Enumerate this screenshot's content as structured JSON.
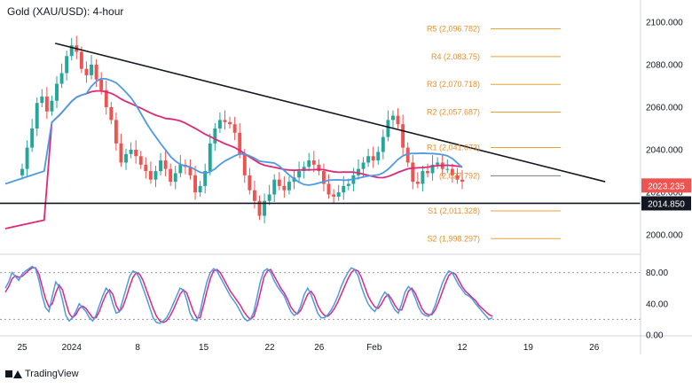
{
  "header": {
    "title": "Gold (XAU/USD): 4-hour"
  },
  "brand": {
    "name": "TradingView"
  },
  "colors": {
    "candle_up": "#26a69a",
    "candle_down": "#ef5350",
    "ma_fast": "#4c9ae6",
    "ma_slow": "#e0287a",
    "trendline": "#131722",
    "pivot": "#f0a030",
    "stoch_k": "#4c9ae6",
    "stoch_d": "#e0287a"
  },
  "chart_data": [
    {
      "type": "candlestick",
      "ylim": [
        1993,
        2107
      ],
      "y_ticks": [
        "2100.000",
        "2080.000",
        "2060.000",
        "2040.000",
        "2020.000",
        "2000.000"
      ],
      "y_tick_values": [
        2100,
        2080,
        2060,
        2040,
        2020,
        2000
      ],
      "x_ticks": [
        {
          "label": "25",
          "t": 0
        },
        {
          "label": "2024",
          "t": 9
        },
        {
          "label": "8",
          "t": 21
        },
        {
          "label": "15",
          "t": 33
        },
        {
          "label": "22",
          "t": 45
        },
        {
          "label": "26",
          "t": 54
        },
        {
          "label": "Feb",
          "t": 64
        },
        {
          "label": "12",
          "t": 80
        },
        {
          "label": "19",
          "t": 92
        },
        {
          "label": "26",
          "t": 104
        }
      ],
      "close": [
        2031,
        2041,
        2050,
        2062,
        2065,
        2058,
        2063,
        2071,
        2076,
        2084,
        2089,
        2086,
        2078,
        2075,
        2080,
        2073,
        2068,
        2060,
        2054,
        2043,
        2034,
        2038,
        2040,
        2037,
        2033,
        2030,
        2026,
        2030,
        2035,
        2031,
        2025,
        2029,
        2033,
        2032,
        2028,
        2020,
        2023,
        2030,
        2043,
        2050,
        2054,
        2053,
        2052,
        2048,
        2038,
        2028,
        2021,
        2016,
        2009,
        2016,
        2019,
        2026,
        2023,
        2021,
        2025,
        2027,
        2030,
        2032,
        2035,
        2033,
        2030,
        2024,
        2019,
        2018,
        2020,
        2023,
        2024,
        2028,
        2031,
        2034,
        2037,
        2035,
        2039,
        2046,
        2054,
        2056,
        2052,
        2041,
        2034,
        2025,
        2024,
        2030,
        2029,
        2033,
        2034,
        2031,
        2031,
        2028,
        2026,
        2025
      ],
      "markers": {
        "last_price": "2023.235",
        "support": "2014.850"
      },
      "trendline": [
        {
          "t": 6,
          "y": 2090
        },
        {
          "t": 106,
          "y": 2025
        }
      ],
      "support_line": {
        "y": 2014.85
      },
      "pivots": [
        {
          "label": "R5 (2,096.782)",
          "y": 2096.782
        },
        {
          "label": "R4 (2,083.75)",
          "y": 2083.75
        },
        {
          "label": "R3 (2,070.718)",
          "y": 2070.718
        },
        {
          "label": "R2 (2,057.687)",
          "y": 2057.687
        },
        {
          "label": "R1 (2,041.073)",
          "y": 2041.073
        },
        {
          "label": "(2,027.792)",
          "y": 2027.792
        },
        {
          "label": "S1 (2,011.328)",
          "y": 2011.328
        },
        {
          "label": "S2 (1,998.297)",
          "y": 1998.297
        }
      ]
    },
    {
      "type": "line",
      "ylim": [
        0,
        100
      ],
      "y_ticks": [
        "80.00",
        "40.00",
        "0.00"
      ],
      "y_tick_values": [
        80,
        40,
        0
      ],
      "guides": [
        80,
        20
      ],
      "series_k": [
        60,
        68,
        80,
        75,
        70,
        78,
        82,
        85,
        88,
        85,
        70,
        50,
        35,
        30,
        50,
        68,
        62,
        45,
        25,
        18,
        22,
        30,
        40,
        35,
        30,
        22,
        18,
        25,
        38,
        50,
        60,
        55,
        40,
        28,
        30,
        45,
        60,
        75,
        82,
        80,
        72,
        60,
        48,
        35,
        22,
        16,
        15,
        18,
        22,
        30,
        40,
        50,
        60,
        58,
        45,
        28,
        20,
        18,
        30,
        50,
        68,
        80,
        85,
        82,
        74,
        66,
        58,
        50,
        44,
        38,
        30,
        22,
        18,
        20,
        30,
        50,
        70,
        82,
        85,
        80,
        70,
        62,
        56,
        50,
        40,
        30,
        25,
        28,
        38,
        52,
        60,
        52,
        40,
        28,
        22,
        22,
        26,
        32,
        40,
        50,
        62,
        72,
        80,
        86,
        84,
        76,
        62,
        50,
        40,
        34,
        30,
        38,
        48,
        55,
        50,
        40,
        32,
        28,
        40,
        55,
        62,
        58,
        48,
        36,
        28,
        25,
        24,
        28,
        38,
        52,
        65,
        75,
        82,
        80,
        72,
        64,
        58,
        52,
        50,
        46,
        40,
        35,
        30,
        25,
        20,
        22
      ],
      "series_d": [
        55,
        62,
        72,
        76,
        74,
        75,
        79,
        83,
        86,
        86,
        78,
        62,
        46,
        36,
        40,
        54,
        64,
        58,
        42,
        28,
        22,
        26,
        34,
        37,
        34,
        28,
        22,
        22,
        30,
        42,
        52,
        58,
        52,
        38,
        30,
        36,
        48,
        62,
        74,
        80,
        78,
        70,
        58,
        46,
        34,
        24,
        18,
        16,
        18,
        24,
        32,
        42,
        52,
        58,
        54,
        42,
        30,
        22,
        22,
        38,
        56,
        72,
        82,
        84,
        80,
        72,
        64,
        56,
        50,
        44,
        38,
        30,
        24,
        20,
        24,
        38,
        56,
        74,
        82,
        84,
        76,
        68,
        60,
        54,
        46,
        36,
        30,
        27,
        32,
        42,
        52,
        56,
        50,
        38,
        30,
        25,
        24,
        28,
        34,
        42,
        52,
        62,
        72,
        80,
        84,
        82,
        74,
        62,
        50,
        42,
        36,
        34,
        40,
        48,
        52,
        46,
        38,
        32,
        32,
        44,
        56,
        60,
        54,
        44,
        34,
        28,
        26,
        26,
        32,
        42,
        54,
        66,
        76,
        80,
        78,
        70,
        62,
        56,
        52,
        48,
        44,
        38,
        34,
        30,
        26,
        24
      ]
    }
  ]
}
